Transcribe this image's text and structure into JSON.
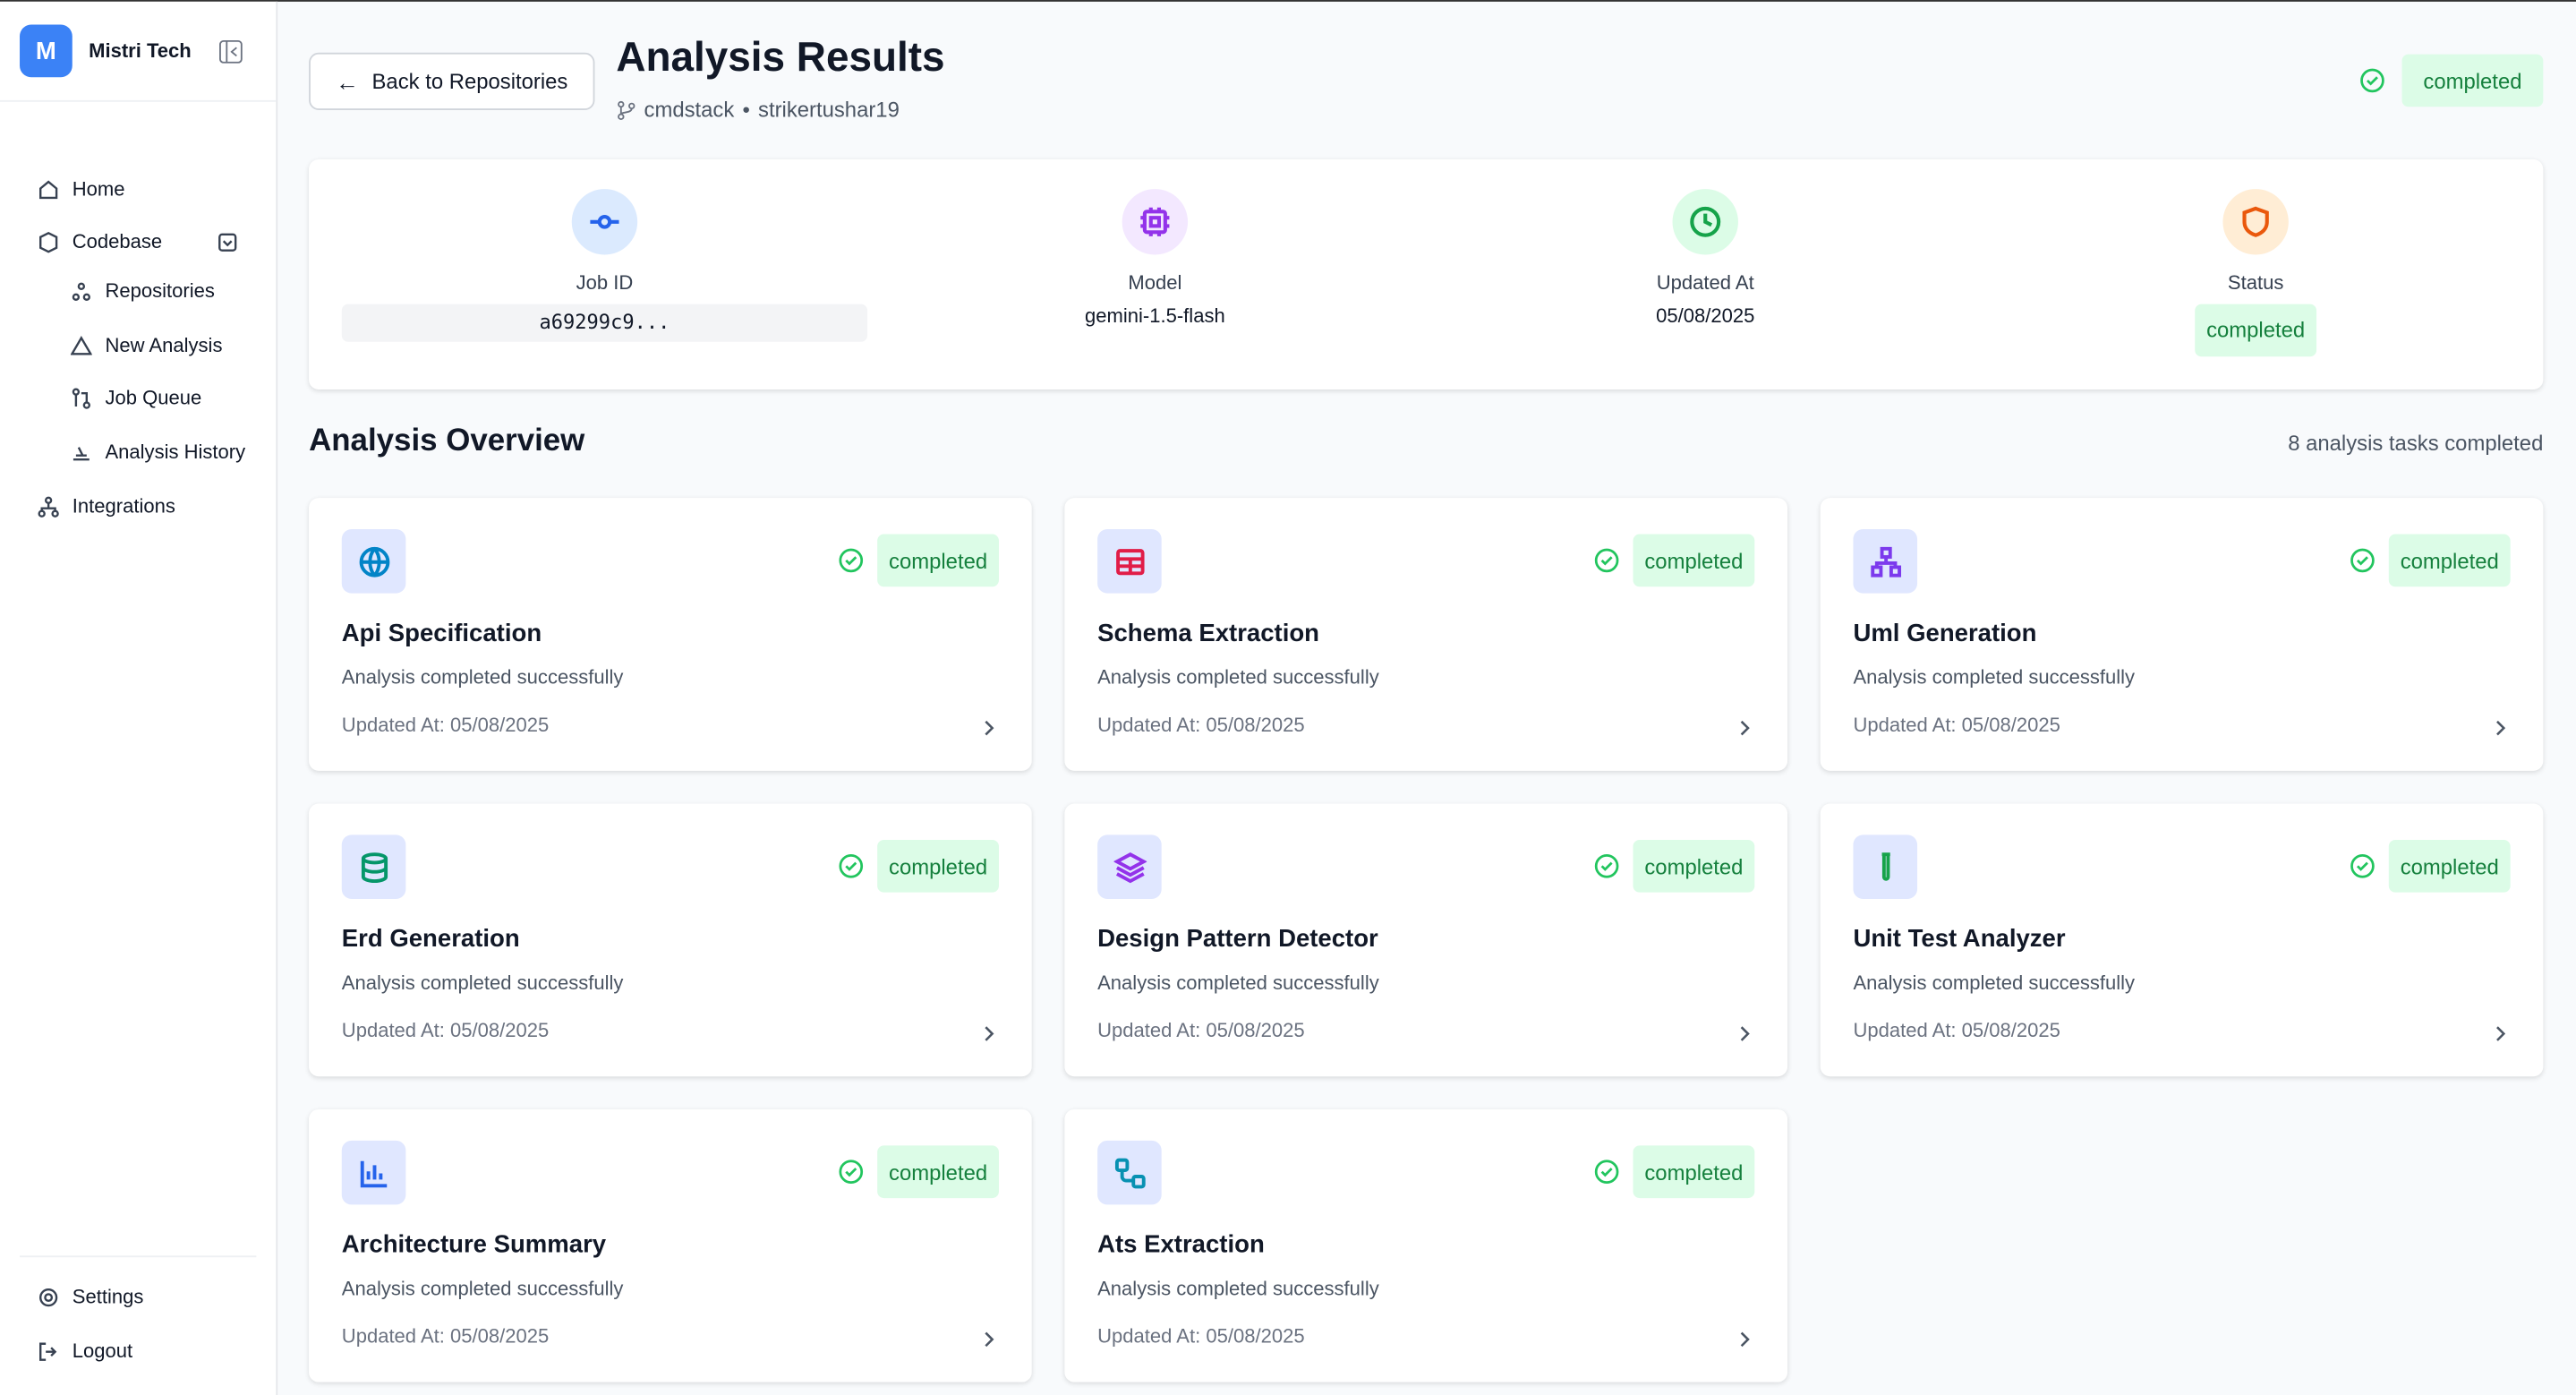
{
  "sidebar": {
    "brand_initial": "M",
    "brand": "Mistri Tech",
    "nav": [
      "Home",
      "Codebase",
      "Repositories",
      "New Analysis",
      "Job Queue",
      "Analysis History",
      "Integrations"
    ],
    "footer": [
      "Settings",
      "Logout"
    ]
  },
  "header": {
    "back": "Back to Repositories",
    "title": "Analysis Results",
    "repo": "cmdstack",
    "separator": "•",
    "owner": "strikertushar19",
    "status": "completed"
  },
  "summary": [
    {
      "label": "Job ID",
      "value": "a69299c9..."
    },
    {
      "label": "Model",
      "value": "gemini-1.5-flash"
    },
    {
      "label": "Updated At",
      "value": "05/08/2025"
    },
    {
      "label": "Status",
      "value": "completed"
    }
  ],
  "overview": {
    "title": "Analysis Overview",
    "count_text": "8 analysis tasks completed",
    "tasks": [
      {
        "name": "Api Specification",
        "status": "completed",
        "description": "Analysis completed successfully",
        "updated": "Updated At: 05/08/2025"
      },
      {
        "name": "Schema Extraction",
        "status": "completed",
        "description": "Analysis completed successfully",
        "updated": "Updated At: 05/08/2025"
      },
      {
        "name": "Uml Generation",
        "status": "completed",
        "description": "Analysis completed successfully",
        "updated": "Updated At: 05/08/2025"
      },
      {
        "name": "Erd Generation",
        "status": "completed",
        "description": "Analysis completed successfully",
        "updated": "Updated At: 05/08/2025"
      },
      {
        "name": "Design Pattern Detector",
        "status": "completed",
        "description": "Analysis completed successfully",
        "updated": "Updated At: 05/08/2025"
      },
      {
        "name": "Unit Test Analyzer",
        "status": "completed",
        "description": "Analysis completed successfully",
        "updated": "Updated At: 05/08/2025"
      },
      {
        "name": "Architecture Summary",
        "status": "completed",
        "description": "Analysis completed successfully",
        "updated": "Updated At: 05/08/2025"
      },
      {
        "name": "Ats Extraction",
        "status": "completed",
        "description": "Analysis completed successfully",
        "updated": "Updated At: 05/08/2025"
      }
    ]
  }
}
